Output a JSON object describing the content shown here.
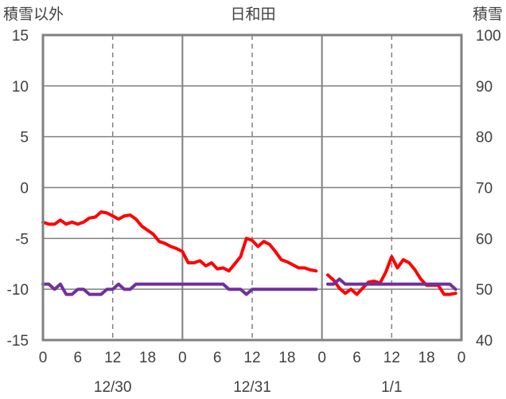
{
  "chart_data": {
    "type": "line",
    "title": "日和田",
    "left_axis": {
      "label": "積雪以外",
      "ylim": [
        -15,
        15
      ],
      "ticks": [
        "15",
        "10",
        "5",
        "0",
        "-5",
        "-10",
        "-15"
      ]
    },
    "right_axis": {
      "label": "積雪",
      "ylim": [
        40,
        100
      ],
      "ticks": [
        "100",
        "90",
        "80",
        "70",
        "60",
        "50",
        "40"
      ]
    },
    "x_hours_range": [
      0,
      72
    ],
    "x_tick_labels": [
      "0",
      "6",
      "12",
      "18",
      "0",
      "6",
      "12",
      "18",
      "0",
      "6",
      "12",
      "18",
      "0"
    ],
    "day_labels": [
      "12/30",
      "12/31",
      "1/1"
    ],
    "grid": true,
    "colors": {
      "series_red": "#ff0000",
      "series_purple": "#7030a0",
      "frame": "#808080",
      "grid": "#808080",
      "text": "#404040"
    },
    "series": [
      {
        "axis": "left",
        "color": "#ff0000",
        "segments": [
          [
            [
              0,
              -3.4
            ],
            [
              1,
              -3.6
            ],
            [
              2,
              -3.6
            ],
            [
              3,
              -3.2
            ],
            [
              4,
              -3.6
            ],
            [
              5,
              -3.4
            ],
            [
              6,
              -3.6
            ],
            [
              7,
              -3.4
            ],
            [
              8,
              -3.0
            ],
            [
              9,
              -2.9
            ],
            [
              10,
              -2.4
            ],
            [
              11,
              -2.5
            ],
            [
              12,
              -2.8
            ],
            [
              13,
              -3.1
            ],
            [
              14,
              -2.8
            ],
            [
              15,
              -2.7
            ],
            [
              16,
              -3.1
            ],
            [
              17,
              -3.8
            ],
            [
              18,
              -4.2
            ],
            [
              19,
              -4.6
            ],
            [
              20,
              -5.3
            ],
            [
              21,
              -5.5
            ],
            [
              22,
              -5.8
            ],
            [
              23,
              -6.0
            ],
            [
              24,
              -6.3
            ],
            [
              25,
              -7.4
            ],
            [
              26,
              -7.4
            ],
            [
              27,
              -7.2
            ],
            [
              28,
              -7.7
            ],
            [
              29,
              -7.4
            ],
            [
              30,
              -8.0
            ],
            [
              31,
              -7.9
            ],
            [
              32,
              -8.2
            ],
            [
              33,
              -7.5
            ],
            [
              34,
              -6.8
            ],
            [
              35,
              -5.0
            ],
            [
              36,
              -5.2
            ],
            [
              37,
              -5.8
            ],
            [
              38,
              -5.3
            ],
            [
              39,
              -5.6
            ],
            [
              40,
              -6.3
            ],
            [
              41,
              -7.1
            ],
            [
              42,
              -7.3
            ],
            [
              43,
              -7.6
            ],
            [
              44,
              -7.9
            ],
            [
              45,
              -7.9
            ],
            [
              46,
              -8.1
            ],
            [
              47,
              -8.2
            ]
          ],
          [
            [
              49,
              -8.6
            ],
            [
              50,
              -9.1
            ],
            [
              51,
              -9.9
            ],
            [
              52,
              -10.4
            ],
            [
              53,
              -10.0
            ],
            [
              54,
              -10.5
            ],
            [
              55,
              -9.9
            ],
            [
              56,
              -9.3
            ],
            [
              57,
              -9.2
            ],
            [
              58,
              -9.4
            ],
            [
              59,
              -8.3
            ],
            [
              60,
              -6.8
            ],
            [
              61,
              -7.9
            ],
            [
              62,
              -7.1
            ],
            [
              63,
              -7.4
            ],
            [
              64,
              -8.1
            ],
            [
              65,
              -9.0
            ],
            [
              66,
              -9.6
            ],
            [
              67,
              -9.6
            ],
            [
              68,
              -9.6
            ],
            [
              69,
              -10.5
            ],
            [
              70,
              -10.5
            ],
            [
              71,
              -10.4
            ]
          ]
        ]
      },
      {
        "axis": "left",
        "color": "#7030a0",
        "segments": [
          [
            [
              0,
              -9.5
            ],
            [
              1,
              -9.5
            ],
            [
              2,
              -10.0
            ],
            [
              3,
              -9.5
            ],
            [
              4,
              -10.5
            ],
            [
              5,
              -10.5
            ],
            [
              6,
              -10.0
            ],
            [
              7,
              -10.0
            ],
            [
              8,
              -10.5
            ],
            [
              9,
              -10.5
            ],
            [
              10,
              -10.5
            ],
            [
              11,
              -10.0
            ],
            [
              12,
              -10.0
            ],
            [
              13,
              -9.5
            ],
            [
              14,
              -10.0
            ],
            [
              15,
              -10.0
            ],
            [
              16,
              -9.5
            ],
            [
              17,
              -9.5
            ],
            [
              18,
              -9.5
            ],
            [
              19,
              -9.5
            ],
            [
              20,
              -9.5
            ],
            [
              21,
              -9.5
            ],
            [
              22,
              -9.5
            ],
            [
              23,
              -9.5
            ],
            [
              24,
              -9.5
            ],
            [
              25,
              -9.5
            ],
            [
              26,
              -9.5
            ],
            [
              27,
              -9.5
            ],
            [
              28,
              -9.5
            ],
            [
              29,
              -9.5
            ],
            [
              30,
              -9.5
            ],
            [
              31,
              -9.5
            ],
            [
              32,
              -10.0
            ],
            [
              33,
              -10.0
            ],
            [
              34,
              -10.0
            ],
            [
              35,
              -10.5
            ],
            [
              36,
              -10.0
            ],
            [
              37,
              -10.0
            ],
            [
              38,
              -10.0
            ],
            [
              39,
              -10.0
            ],
            [
              40,
              -10.0
            ],
            [
              41,
              -10.0
            ],
            [
              42,
              -10.0
            ],
            [
              43,
              -10.0
            ],
            [
              44,
              -10.0
            ],
            [
              45,
              -10.0
            ],
            [
              46,
              -10.0
            ],
            [
              47,
              -10.0
            ]
          ],
          [
            [
              49,
              -9.5
            ],
            [
              50,
              -9.5
            ],
            [
              51,
              -9.0
            ],
            [
              52,
              -9.5
            ],
            [
              53,
              -9.5
            ],
            [
              54,
              -9.5
            ],
            [
              55,
              -9.5
            ],
            [
              56,
              -9.5
            ],
            [
              57,
              -9.5
            ],
            [
              58,
              -9.5
            ],
            [
              59,
              -9.5
            ],
            [
              60,
              -9.5
            ],
            [
              61,
              -9.5
            ],
            [
              62,
              -9.5
            ],
            [
              63,
              -9.5
            ],
            [
              64,
              -9.5
            ],
            [
              65,
              -9.5
            ],
            [
              66,
              -9.5
            ],
            [
              67,
              -9.5
            ],
            [
              68,
              -9.5
            ],
            [
              69,
              -9.5
            ],
            [
              70,
              -9.5
            ],
            [
              71,
              -10.0
            ]
          ]
        ]
      }
    ]
  }
}
